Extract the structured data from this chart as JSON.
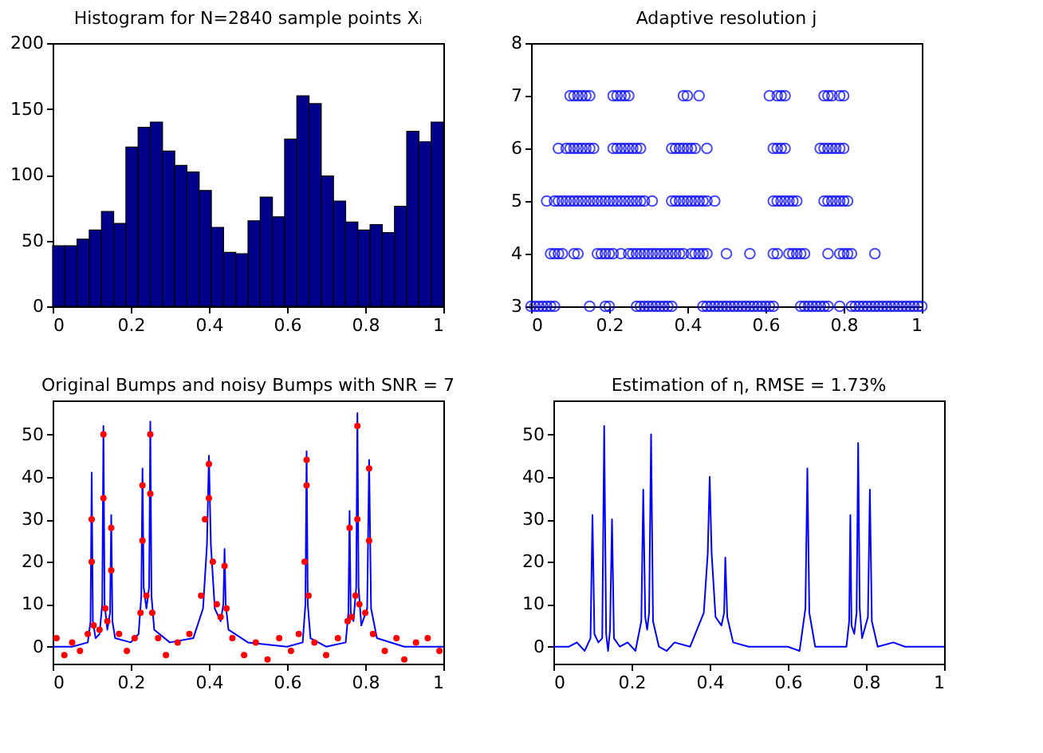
{
  "chart_data": [
    {
      "type": "histogram",
      "title": "Histogram for N=2840 sample points Xᵢ",
      "color": "#00008b",
      "bins": [
        0,
        0.03125,
        0.0625,
        0.09375,
        0.125,
        0.15625,
        0.1875,
        0.21875,
        0.25,
        0.28125,
        0.3125,
        0.34375,
        0.375,
        0.40625,
        0.4375,
        0.46875,
        0.5,
        0.53125,
        0.5625,
        0.59375,
        0.625,
        0.65625,
        0.6875,
        0.71875,
        0.75,
        0.78125,
        0.8125,
        0.84375,
        0.875,
        0.90625,
        0.9375,
        0.96875,
        1
      ],
      "values": [
        46,
        46,
        51,
        58,
        72,
        63,
        121,
        136,
        140,
        118,
        107,
        102,
        88,
        60,
        41,
        40,
        65,
        83,
        68,
        127,
        160,
        154,
        99,
        80,
        64,
        58,
        62,
        56,
        76,
        133,
        125,
        140
      ],
      "xlim": [
        0,
        1
      ],
      "xticks": [
        0,
        0.2,
        0.4,
        0.6,
        0.8,
        1
      ],
      "ylim": [
        0,
        200
      ],
      "yticks": [
        0,
        50,
        100,
        150,
        200
      ]
    },
    {
      "type": "scatter",
      "title": "Adaptive resolution j",
      "marker": "circle",
      "series": [
        {
          "color": "#0000ff",
          "x": [
            0.1,
            0.11,
            0.12,
            0.13,
            0.14,
            0.15,
            0.21,
            0.22,
            0.23,
            0.24,
            0.25,
            0.39,
            0.4,
            0.43,
            0.61,
            0.63,
            0.64,
            0.65,
            0.75,
            0.76,
            0.77,
            0.79,
            0.8
          ],
          "values": [
            7,
            7,
            7,
            7,
            7,
            7,
            7,
            7,
            7,
            7,
            7,
            7,
            7,
            7,
            7,
            7,
            7,
            7,
            7,
            7,
            7,
            7,
            7
          ]
        },
        {
          "color": "#0000ff",
          "x": [
            0.07,
            0.09,
            0.1,
            0.11,
            0.12,
            0.13,
            0.14,
            0.15,
            0.16,
            0.21,
            0.22,
            0.23,
            0.24,
            0.25,
            0.26,
            0.27,
            0.28,
            0.36,
            0.37,
            0.38,
            0.39,
            0.4,
            0.41,
            0.42,
            0.45,
            0.62,
            0.63,
            0.64,
            0.65,
            0.74,
            0.75,
            0.76,
            0.77,
            0.78,
            0.79,
            0.8
          ],
          "values": [
            6,
            6,
            6,
            6,
            6,
            6,
            6,
            6,
            6,
            6,
            6,
            6,
            6,
            6,
            6,
            6,
            6,
            6,
            6,
            6,
            6,
            6,
            6,
            6,
            6,
            6,
            6,
            6,
            6,
            6,
            6,
            6,
            6,
            6,
            6,
            6
          ]
        },
        {
          "color": "#0000ff",
          "x": [
            0.04,
            0.06,
            0.07,
            0.08,
            0.09,
            0.1,
            0.11,
            0.12,
            0.13,
            0.14,
            0.15,
            0.16,
            0.17,
            0.18,
            0.19,
            0.2,
            0.21,
            0.22,
            0.23,
            0.24,
            0.25,
            0.26,
            0.27,
            0.28,
            0.29,
            0.31,
            0.36,
            0.37,
            0.38,
            0.39,
            0.4,
            0.41,
            0.42,
            0.43,
            0.44,
            0.45,
            0.47,
            0.62,
            0.63,
            0.64,
            0.65,
            0.66,
            0.67,
            0.68,
            0.75,
            0.76,
            0.77,
            0.78,
            0.79,
            0.8,
            0.81
          ],
          "values": [
            5,
            5,
            5,
            5,
            5,
            5,
            5,
            5,
            5,
            5,
            5,
            5,
            5,
            5,
            5,
            5,
            5,
            5,
            5,
            5,
            5,
            5,
            5,
            5,
            5,
            5,
            5,
            5,
            5,
            5,
            5,
            5,
            5,
            5,
            5,
            5,
            5,
            5,
            5,
            5,
            5,
            5,
            5,
            5,
            5,
            5,
            5,
            5,
            5,
            5,
            5
          ]
        },
        {
          "color": "#0000ff",
          "x": [
            0.05,
            0.06,
            0.07,
            0.08,
            0.11,
            0.12,
            0.17,
            0.18,
            0.19,
            0.2,
            0.21,
            0.23,
            0.25,
            0.26,
            0.27,
            0.28,
            0.29,
            0.3,
            0.31,
            0.32,
            0.33,
            0.34,
            0.35,
            0.36,
            0.37,
            0.38,
            0.39,
            0.41,
            0.42,
            0.43,
            0.44,
            0.45,
            0.5,
            0.56,
            0.62,
            0.63,
            0.66,
            0.67,
            0.68,
            0.69,
            0.7,
            0.76,
            0.79,
            0.8,
            0.81,
            0.82,
            0.88
          ],
          "values": [
            4,
            4,
            4,
            4,
            4,
            4,
            4,
            4,
            4,
            4,
            4,
            4,
            4,
            4,
            4,
            4,
            4,
            4,
            4,
            4,
            4,
            4,
            4,
            4,
            4,
            4,
            4,
            4,
            4,
            4,
            4,
            4,
            4,
            4,
            4,
            4,
            4,
            4,
            4,
            4,
            4,
            4,
            4,
            4,
            4,
            4,
            4
          ]
        },
        {
          "color": "#0000ff",
          "x": [
            0,
            0.01,
            0.02,
            0.03,
            0.04,
            0.05,
            0.06,
            0.15,
            0.19,
            0.2,
            0.27,
            0.28,
            0.29,
            0.3,
            0.31,
            0.32,
            0.33,
            0.34,
            0.35,
            0.36,
            0.44,
            0.45,
            0.46,
            0.47,
            0.48,
            0.49,
            0.5,
            0.51,
            0.52,
            0.53,
            0.54,
            0.55,
            0.56,
            0.57,
            0.58,
            0.59,
            0.6,
            0.61,
            0.62,
            0.69,
            0.7,
            0.71,
            0.72,
            0.73,
            0.74,
            0.75,
            0.76,
            0.79,
            0.82,
            0.83,
            0.84,
            0.85,
            0.86,
            0.87,
            0.88,
            0.89,
            0.9,
            0.91,
            0.92,
            0.93,
            0.94,
            0.95,
            0.96,
            0.97,
            0.98,
            0.99,
            1.0
          ],
          "values": [
            3,
            3,
            3,
            3,
            3,
            3,
            3,
            3,
            3,
            3,
            3,
            3,
            3,
            3,
            3,
            3,
            3,
            3,
            3,
            3,
            3,
            3,
            3,
            3,
            3,
            3,
            3,
            3,
            3,
            3,
            3,
            3,
            3,
            3,
            3,
            3,
            3,
            3,
            3,
            3,
            3,
            3,
            3,
            3,
            3,
            3,
            3,
            3,
            3,
            3,
            3,
            3,
            3,
            3,
            3,
            3,
            3,
            3,
            3,
            3,
            3,
            3,
            3,
            3,
            3,
            3,
            3
          ]
        }
      ],
      "xlim": [
        0,
        1
      ],
      "xticks": [
        0,
        0.2,
        0.4,
        0.6,
        0.8,
        1
      ],
      "ylim": [
        3,
        8
      ],
      "yticks": [
        3,
        4,
        5,
        6,
        7,
        8
      ]
    },
    {
      "type": "line",
      "title": "Original Bumps and noisy Bumps with SNR = 7",
      "series": [
        {
          "type": "line",
          "color": "#0000ff",
          "x": [
            0,
            0.05,
            0.09,
            0.097,
            0.1,
            0.103,
            0.11,
            0.12,
            0.127,
            0.13,
            0.133,
            0.14,
            0.147,
            0.15,
            0.153,
            0.16,
            0.2,
            0.22,
            0.227,
            0.23,
            0.233,
            0.24,
            0.247,
            0.25,
            0.253,
            0.26,
            0.3,
            0.36,
            0.385,
            0.395,
            0.4,
            0.405,
            0.415,
            0.43,
            0.437,
            0.44,
            0.443,
            0.45,
            0.5,
            0.6,
            0.64,
            0.647,
            0.65,
            0.653,
            0.66,
            0.7,
            0.75,
            0.757,
            0.76,
            0.763,
            0.77,
            0.777,
            0.78,
            0.783,
            0.79,
            0.805,
            0.81,
            0.815,
            0.83,
            0.9,
            1.0
          ],
          "values": [
            0,
            0,
            1,
            6,
            41,
            6,
            2,
            3,
            10,
            52,
            10,
            4,
            8,
            31,
            6,
            2,
            1,
            3,
            12,
            42,
            14,
            9,
            14,
            53,
            12,
            4,
            1,
            2,
            9,
            24,
            45,
            24,
            9,
            6,
            10,
            23,
            10,
            4,
            1,
            0,
            1,
            10,
            46,
            10,
            2,
            0,
            1,
            8,
            32,
            8,
            6,
            14,
            55,
            14,
            5,
            9,
            44,
            9,
            2,
            0,
            0
          ]
        },
        {
          "type": "scatter",
          "color": "#ff0000",
          "x": [
            0.01,
            0.03,
            0.05,
            0.07,
            0.09,
            0.1,
            0.1,
            0.105,
            0.12,
            0.13,
            0.13,
            0.135,
            0.14,
            0.15,
            0.15,
            0.17,
            0.19,
            0.21,
            0.225,
            0.23,
            0.23,
            0.24,
            0.25,
            0.25,
            0.255,
            0.27,
            0.29,
            0.32,
            0.35,
            0.38,
            0.39,
            0.4,
            0.4,
            0.41,
            0.42,
            0.43,
            0.44,
            0.445,
            0.46,
            0.49,
            0.52,
            0.55,
            0.58,
            0.61,
            0.63,
            0.645,
            0.65,
            0.65,
            0.655,
            0.67,
            0.7,
            0.73,
            0.755,
            0.76,
            0.765,
            0.775,
            0.78,
            0.78,
            0.785,
            0.8,
            0.81,
            0.81,
            0.82,
            0.85,
            0.88,
            0.9,
            0.93,
            0.96,
            0.99
          ],
          "values": [
            2,
            -2,
            1,
            -1,
            3,
            30,
            20,
            5,
            4,
            50,
            35,
            9,
            6,
            28,
            18,
            3,
            -1,
            2,
            8,
            38,
            25,
            12,
            50,
            36,
            8,
            2,
            -2,
            1,
            3,
            12,
            30,
            43,
            35,
            20,
            10,
            7,
            19,
            9,
            2,
            -2,
            1,
            -3,
            2,
            -1,
            3,
            20,
            44,
            38,
            12,
            1,
            -2,
            2,
            6,
            28,
            7,
            12,
            52,
            30,
            10,
            8,
            42,
            25,
            3,
            -1,
            2,
            -3,
            1,
            2,
            -1
          ]
        }
      ],
      "xlim": [
        0,
        1
      ],
      "xticks": [
        0,
        0.2,
        0.4,
        0.6,
        0.8,
        1
      ],
      "ylim": [
        -4,
        58
      ],
      "yticks": [
        0,
        10,
        20,
        30,
        40,
        50
      ]
    },
    {
      "type": "line",
      "title": "Estimation of η, RMSE = 1.73%",
      "color": "#0000ff",
      "x": [
        0,
        0.04,
        0.06,
        0.08,
        0.095,
        0.1,
        0.105,
        0.115,
        0.125,
        0.13,
        0.135,
        0.14,
        0.145,
        0.15,
        0.155,
        0.17,
        0.19,
        0.21,
        0.225,
        0.23,
        0.235,
        0.24,
        0.245,
        0.25,
        0.255,
        0.27,
        0.29,
        0.31,
        0.35,
        0.385,
        0.395,
        0.4,
        0.405,
        0.415,
        0.43,
        0.437,
        0.44,
        0.445,
        0.46,
        0.5,
        0.6,
        0.63,
        0.645,
        0.65,
        0.655,
        0.67,
        0.72,
        0.75,
        0.757,
        0.76,
        0.763,
        0.77,
        0.776,
        0.78,
        0.784,
        0.79,
        0.805,
        0.81,
        0.815,
        0.83,
        0.87,
        0.9,
        1.0
      ],
      "values": [
        0,
        0,
        1,
        -1,
        2,
        31,
        3,
        1,
        2,
        52,
        3,
        -1,
        4,
        30,
        2,
        0,
        1,
        -1,
        6,
        37,
        7,
        4,
        8,
        50,
        6,
        0,
        -1,
        1,
        0,
        8,
        22,
        40,
        22,
        7,
        5,
        8,
        21,
        7,
        1,
        0,
        0,
        -1,
        9,
        42,
        8,
        0,
        0,
        0,
        6,
        31,
        5,
        3,
        8,
        48,
        9,
        2,
        7,
        37,
        6,
        0,
        1,
        0,
        0
      ],
      "xlim": [
        0,
        1
      ],
      "xticks": [
        0,
        0.2,
        0.4,
        0.6,
        0.8,
        1
      ],
      "ylim": [
        -4,
        58
      ],
      "yticks": [
        0,
        10,
        20,
        30,
        40,
        50
      ]
    }
  ]
}
